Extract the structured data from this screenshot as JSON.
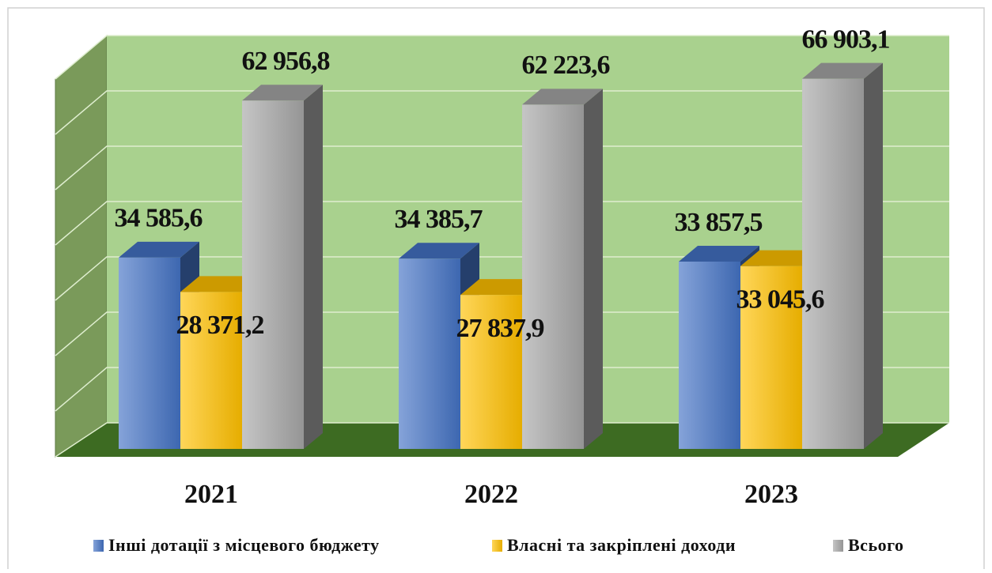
{
  "chart_data": {
    "type": "bar3d",
    "categories": [
      "2021",
      "2022",
      "2023"
    ],
    "series": [
      {
        "name": "Інші дотації з місцевого бюджету",
        "color": "#4472c4",
        "values": [
          34585.6,
          34385.7,
          33857.5
        ],
        "value_labels": [
          "34 585,6",
          "34 385,7",
          "33 857,5"
        ]
      },
      {
        "name": "Власні та закріплені доходи",
        "color": "#ffc000",
        "values": [
          28371.2,
          27837.9,
          33045.6
        ],
        "value_labels": [
          "28 371,2",
          "27 837,9",
          "33 045,6"
        ]
      },
      {
        "name": "Всього",
        "color": "#a5a5a5",
        "values": [
          62956.8,
          62223.6,
          66903.1
        ],
        "value_labels": [
          "62 956,8",
          "62 223,6",
          "66 903,1"
        ]
      }
    ],
    "ylim": [
      0,
      70000
    ],
    "yticks": [
      0,
      10000,
      20000,
      30000,
      40000,
      50000,
      60000,
      70000
    ],
    "grid": true,
    "legend": "bottom"
  }
}
